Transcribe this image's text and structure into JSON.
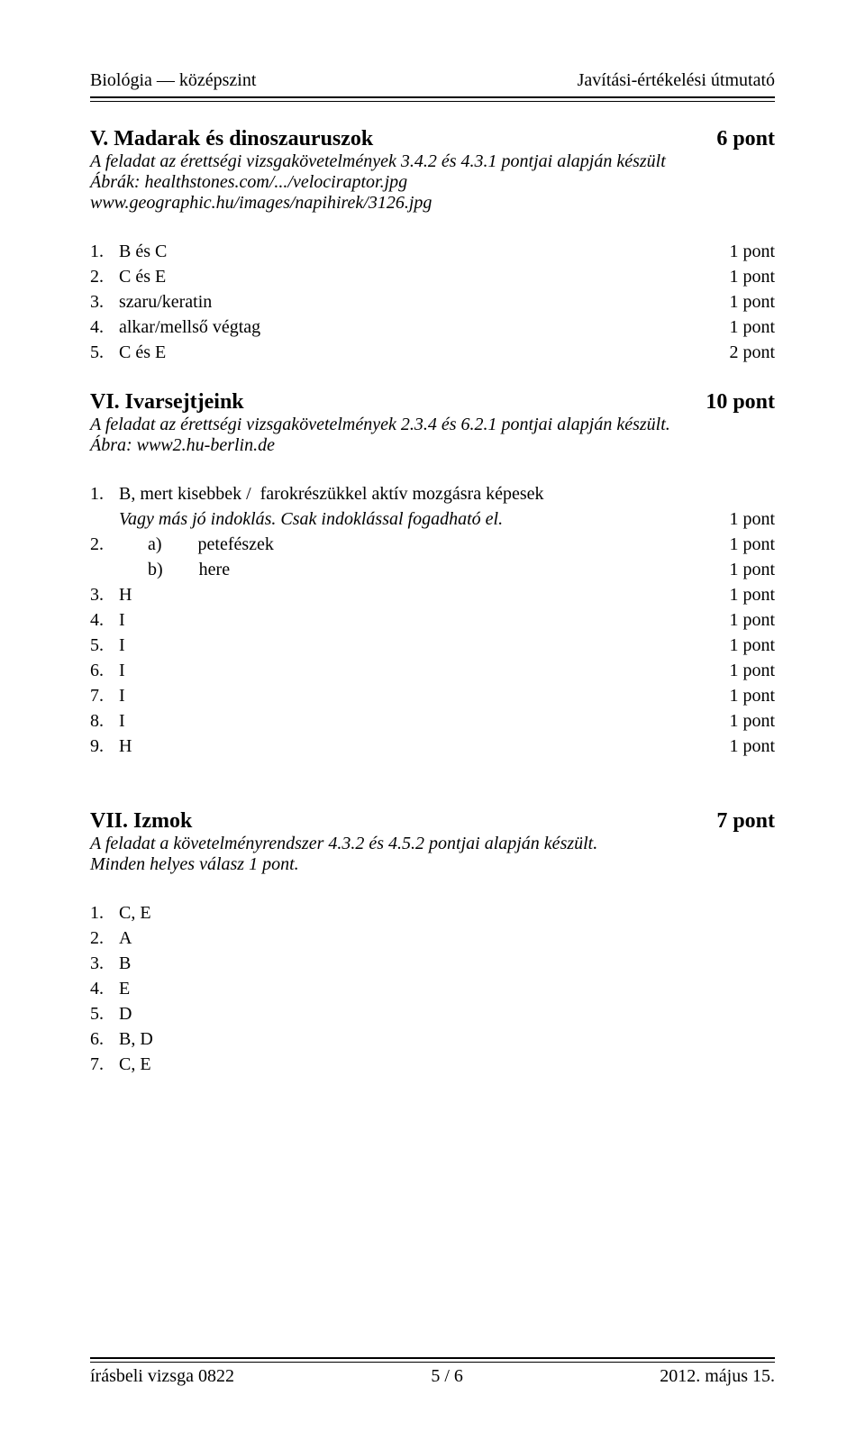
{
  "header": {
    "left": "Biológia — középszint",
    "right": "Javítási-értékelési útmutató"
  },
  "sectionV": {
    "title": "V.  Madarak és dinoszauruszok",
    "points": "6 pont",
    "desc1": "A feladat az érettségi vizsgakövetelmények 3.4.2 és 4.3.1 pontjai alapján készült",
    "desc2": "Ábrák: healthstones.com/.../velociraptor.jpg",
    "desc3": "www.geographic.hu/images/napihirek/3126.jpg",
    "items": [
      {
        "n": "1.",
        "t": "B és C",
        "p": "1 pont"
      },
      {
        "n": "2.",
        "t": "C és E",
        "p": "1 pont"
      },
      {
        "n": "3.",
        "t": "szaru/keratin",
        "p": "1 pont"
      },
      {
        "n": "4.",
        "t": "alkar/mellső végtag",
        "p": "1 pont"
      },
      {
        "n": "5.",
        "t": "C és E",
        "p": "2 pont"
      }
    ]
  },
  "sectionVI": {
    "title": "VI.   Ivarsejtjeink",
    "points": "10 pont",
    "desc1": "A feladat az érettségi vizsgakövetelmények 2.3.4 és 6.2.1 pontjai alapján készült.",
    "desc2": "Ábra: www2.hu-berlin.de",
    "item1a": {
      "n": "1.",
      "t": "B, mert kisebbek /  farokrészükkel aktív mozgásra képesek"
    },
    "item1b": {
      "t": "Vagy más jó indoklás. Csak indoklással fogadható el.",
      "p": "1 pont"
    },
    "item2a": {
      "n": "2.",
      "t": "a)        petefészek",
      "p": "1 pont"
    },
    "item2b": {
      "t": "b)        here",
      "p": "1 pont"
    },
    "rest": [
      {
        "n": "3.",
        "t": "H",
        "p": "1 pont"
      },
      {
        "n": "4.",
        "t": "I",
        "p": "1 pont"
      },
      {
        "n": "5.",
        "t": "I",
        "p": "1 pont"
      },
      {
        "n": "6.",
        "t": "I",
        "p": "1 pont"
      },
      {
        "n": "7.",
        "t": "I",
        "p": "1 pont"
      },
      {
        "n": "8.",
        "t": "I",
        "p": "1 pont"
      },
      {
        "n": "9.",
        "t": "H",
        "p": "1 pont"
      }
    ]
  },
  "sectionVII": {
    "title": "VII.  Izmok",
    "points": "7 pont",
    "desc1": "A feladat a követelményrendszer 4.3.2 és 4.5.2 pontjai alapján készült.",
    "desc2": "Minden helyes válasz 1 pont.",
    "items": [
      {
        "n": "1.",
        "t": "C, E"
      },
      {
        "n": "2.",
        "t": "A"
      },
      {
        "n": "3.",
        "t": "B"
      },
      {
        "n": "4.",
        "t": "E"
      },
      {
        "n": "5.",
        "t": "D"
      },
      {
        "n": "6.",
        "t": "B, D"
      },
      {
        "n": "7.",
        "t": "C, E"
      }
    ]
  },
  "footer": {
    "left": "írásbeli vizsga 0822",
    "center": "5 / 6",
    "right": "2012. május 15."
  }
}
